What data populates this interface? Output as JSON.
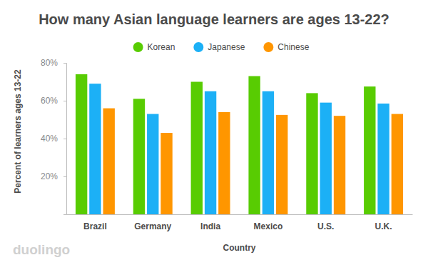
{
  "chart_data": {
    "type": "bar",
    "title": "How many Asian language learners are ages 13-22?",
    "xlabel": "Country",
    "ylabel": "Percent of learners ages 13-22",
    "annotations": [
      "duolingo"
    ],
    "categories": [
      "Brazil",
      "Germany",
      "India",
      "Mexico",
      "U.S.",
      "U.K."
    ],
    "series": [
      {
        "name": "Korean",
        "color": "#58cc02",
        "values": [
          74,
          61,
          70,
          73,
          64,
          67.5
        ]
      },
      {
        "name": "Japanese",
        "color": "#1cb0f6",
        "values": [
          69,
          53,
          65,
          65,
          59,
          58.5
        ]
      },
      {
        "name": "Chinese",
        "color": "#ff9600",
        "values": [
          56,
          43,
          54,
          52.5,
          52,
          53
        ]
      }
    ],
    "ylim": [
      0,
      80
    ],
    "yticks": [
      {
        "value": 20,
        "label": "20%"
      },
      {
        "value": 40,
        "label": "40%"
      },
      {
        "value": 60,
        "label": "60%"
      },
      {
        "value": 80,
        "label": "80%"
      }
    ],
    "grid": false,
    "legend": "top"
  }
}
